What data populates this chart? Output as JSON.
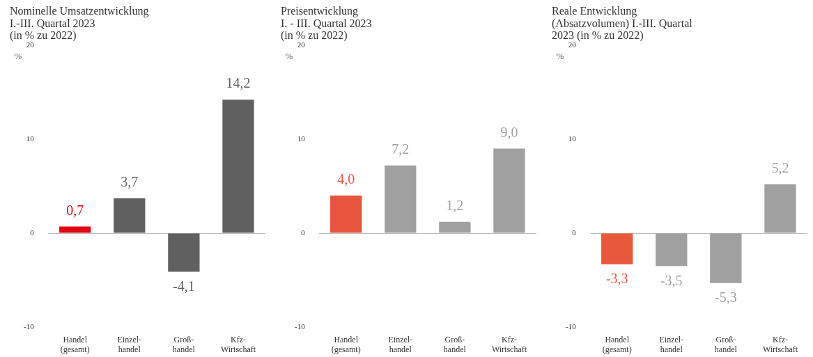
{
  "chart_data": [
    {
      "type": "bar",
      "title": "Nominelle Umsatzentwicklung\nI.-III. Quartal 2023\n(in % zu 2022)",
      "ylabel": "%",
      "categories": [
        "Handel\n(gesamt)",
        "Einzel-\nhandel",
        "Groß-\nhandel",
        "Kfz-\nWirtschaft"
      ],
      "values": [
        0.7,
        3.7,
        -4.1,
        14.2
      ],
      "value_labels": [
        "0,7",
        "3,7",
        "-4,1",
        "14,2"
      ],
      "colors": [
        "#e30613",
        "#606060",
        "#606060",
        "#606060"
      ],
      "ylim": [
        -10,
        20
      ],
      "yticks": [
        -10,
        0,
        10,
        20
      ],
      "legend": false
    },
    {
      "type": "bar",
      "title": "Preisentwicklung\nI. - III. Quartal 2023\n(in % zu 2022)",
      "ylabel": "%",
      "categories": [
        "Handel\n(gesamt)",
        "Einzel-\nhandel",
        "Groß-\nhandel",
        "Kfz-\nWirtschaft"
      ],
      "values": [
        4.0,
        7.2,
        1.2,
        9.0
      ],
      "value_labels": [
        "4,0",
        "7,2",
        "1,2",
        "9,0"
      ],
      "colors": [
        "#e8553e",
        "#a0a0a0",
        "#a0a0a0",
        "#a0a0a0"
      ],
      "ylim": [
        -10,
        20
      ],
      "yticks": [
        -10,
        0,
        10,
        20
      ],
      "legend": false
    },
    {
      "type": "bar",
      "title": "Reale Entwicklung\n(Absatzvolumen) I.-III. Quartal\n2023 (in % zu 2022)",
      "ylabel": "%",
      "categories": [
        "Handel\n(gesamt)",
        "Einzel-\nhandel",
        "Groß-\nhandel",
        "Kfz-\nWirtschaft"
      ],
      "values": [
        -3.3,
        -3.5,
        -5.3,
        5.2
      ],
      "value_labels": [
        "-3,3",
        "-3,5",
        "-5,3",
        "5,2"
      ],
      "colors": [
        "#e8583a",
        "#a0a0a0",
        "#a0a0a0",
        "#a0a0a0"
      ],
      "ylim": [
        -10,
        20
      ],
      "yticks": [
        -10,
        0,
        10,
        20
      ],
      "legend": false
    }
  ]
}
